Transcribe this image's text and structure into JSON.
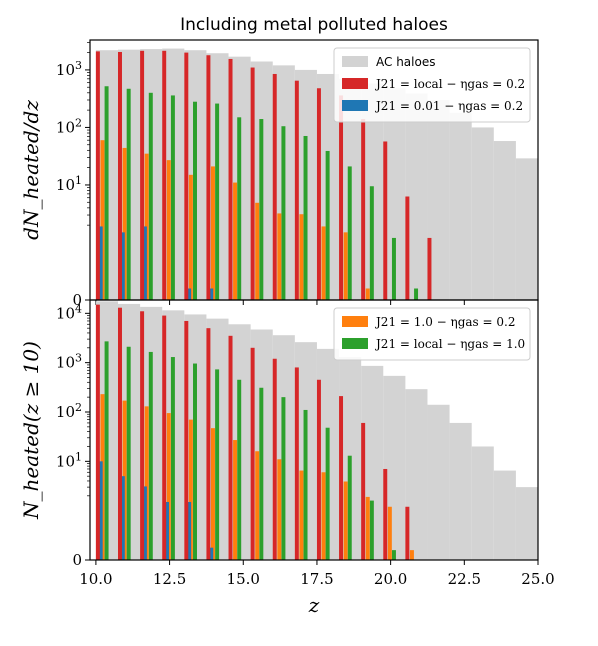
{
  "chart_data": [
    {
      "type": "bar",
      "panel": "top",
      "title": "Including metal polluted haloes",
      "ylabel": "dN_heated/dz",
      "xlabel": "",
      "yscale": "symlog",
      "ytick_labels": [
        "0",
        "10^1",
        "10^2",
        "10^3"
      ],
      "ytick_values": [
        0,
        10,
        100,
        1000
      ],
      "xlim": [
        9.8,
        25.0
      ],
      "legend": {
        "placement": "top-right",
        "entries": [
          "AC haloes",
          "J21 = local − ηgas = 0.2",
          "J21 = 0.01 − ηgas = 0.2"
        ]
      },
      "bin_edges": [
        10.0,
        10.75,
        11.5,
        12.25,
        13.0,
        13.75,
        14.5,
        15.25,
        16.0,
        16.75,
        17.5,
        18.25,
        19.0,
        19.75,
        20.5,
        21.25,
        22.0,
        22.75,
        23.5,
        24.25,
        25.0
      ],
      "series": [
        {
          "name": "AC haloes",
          "color": "#d3d3d3",
          "values": [
            2200,
            2250,
            2300,
            2350,
            2200,
            1950,
            1700,
            1400,
            1200,
            1000,
            850,
            700,
            580,
            480,
            390,
            300,
            180,
            100,
            58,
            29
          ]
        },
        {
          "name": "J21 = local − ηgas = 0.2",
          "color": "#d62728",
          "values": [
            2100,
            2050,
            2150,
            2150,
            2000,
            1800,
            1550,
            1100,
            850,
            650,
            480,
            360,
            140,
            57,
            6.3,
            1.2,
            0,
            0,
            0,
            0
          ]
        },
        {
          "name": "J21 = 0.01 − ηgas = 0.2",
          "color": "#1f77b4",
          "values": [
            1.9,
            1.5,
            1.9,
            0,
            0.2,
            0.2,
            0,
            0,
            0,
            0,
            0,
            0,
            0,
            0,
            0,
            0,
            0,
            0,
            0,
            0
          ]
        },
        {
          "name": "J21 = 1.0 − ηgas = 0.2",
          "color": "#ff7f0e",
          "values": [
            60,
            44,
            35,
            27,
            15,
            21,
            11,
            4.9,
            3.2,
            3.1,
            1.9,
            1.5,
            0.2,
            0,
            0,
            0,
            0,
            0,
            0,
            0
          ]
        },
        {
          "name": "J21 = local − ηgas = 1.0",
          "color": "#2ca02c",
          "values": [
            520,
            470,
            400,
            360,
            280,
            260,
            150,
            140,
            105,
            71,
            39,
            21,
            9.5,
            1.2,
            0.2,
            0,
            0,
            0,
            0,
            0
          ]
        }
      ]
    },
    {
      "type": "bar",
      "panel": "bottom",
      "title": "",
      "ylabel": "N_heated(z ≥ 10)",
      "xlabel": "z",
      "yscale": "symlog",
      "ytick_labels": [
        "0",
        "10^1",
        "10^2",
        "10^3",
        "10^4"
      ],
      "ytick_values": [
        0,
        10,
        100,
        1000,
        10000
      ],
      "xtick_labels": [
        "10.0",
        "12.5",
        "15.0",
        "17.5",
        "20.0",
        "22.5",
        "25.0"
      ],
      "xtick_values": [
        10.0,
        12.5,
        15.0,
        17.5,
        20.0,
        22.5,
        25.0
      ],
      "xlim": [
        9.8,
        25.0
      ],
      "legend": {
        "placement": "top-right",
        "entries": [
          "J21 = 1.0 − ηgas = 0.2",
          "J21 = local − ηgas = 1.0"
        ]
      },
      "bin_edges": [
        10.0,
        10.75,
        11.5,
        12.25,
        13.0,
        13.75,
        14.5,
        15.25,
        16.0,
        16.75,
        17.5,
        18.25,
        19.0,
        19.75,
        20.5,
        21.25,
        22.0,
        22.75,
        23.5,
        24.25,
        25.0
      ],
      "series": [
        {
          "name": "AC haloes",
          "color": "#d3d3d3",
          "values": [
            17500,
            15500,
            13500,
            11500,
            9500,
            7800,
            6000,
            4700,
            3600,
            2600,
            1900,
            1300,
            860,
            540,
            290,
            140,
            60,
            20,
            6.5,
            3
          ]
        },
        {
          "name": "J21 = local − ηgas = 0.2",
          "color": "#d62728",
          "values": [
            15000,
            13000,
            11000,
            9000,
            7000,
            5000,
            3500,
            2000,
            1200,
            800,
            450,
            210,
            60,
            7,
            1.2,
            0,
            0,
            0,
            0,
            0
          ]
        },
        {
          "name": "J21 = 0.01 − ηgas = 0.2",
          "color": "#1f77b4",
          "values": [
            10,
            5,
            3.1,
            1.5,
            1.5,
            0.25,
            0,
            0,
            0,
            0,
            0,
            0,
            0,
            0,
            0,
            0,
            0,
            0,
            0,
            0
          ]
        },
        {
          "name": "J21 = 1.0 − ηgas = 0.2",
          "color": "#ff7f0e",
          "values": [
            230,
            170,
            130,
            95,
            70,
            47,
            27,
            16,
            11,
            6.5,
            6,
            3.9,
            1.9,
            1.2,
            0.2,
            0,
            0,
            0,
            0,
            0
          ]
        },
        {
          "name": "J21 = local − ηgas = 1.0",
          "color": "#2ca02c",
          "values": [
            2700,
            2100,
            1650,
            1300,
            960,
            730,
            450,
            310,
            200,
            110,
            48,
            13,
            1.6,
            0.2,
            0,
            0,
            0,
            0,
            0,
            0
          ]
        }
      ]
    }
  ]
}
